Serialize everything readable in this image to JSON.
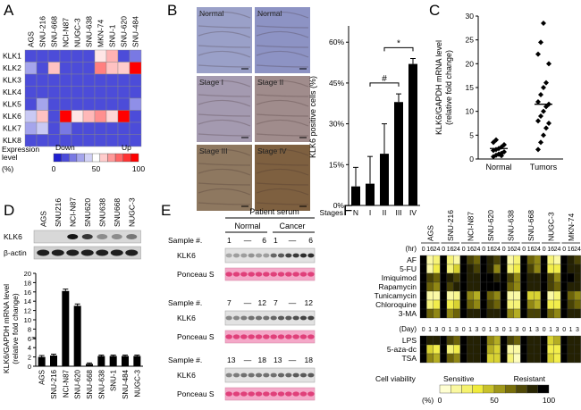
{
  "panels": {
    "A": {
      "letter": "A",
      "cell_lines": [
        "AGS",
        "SNU-216",
        "SNU-668",
        "NCI-N87",
        "NUGC-3",
        "SNU-638",
        "MKN-74",
        "SNU-1",
        "SNU-620",
        "SNU-484"
      ],
      "genes": [
        "KLK1",
        "KLK2",
        "KLK3",
        "KLK4",
        "KLK5",
        "KLK6",
        "KLK7",
        "KLK8"
      ],
      "legend": {
        "title_line1": "Expression",
        "title_line2": "level",
        "down": "Down",
        "up": "Up",
        "unit": "(%)",
        "ticks": [
          "0",
          "50",
          "100"
        ]
      },
      "colors": {
        "blue": "#1f1fd0",
        "mid": "#ffffff",
        "red": "#ff0000"
      }
    },
    "B": {
      "letter": "B",
      "image_labels": [
        "Normal",
        "Normal",
        "Stage I",
        "Stage II",
        "Stage III",
        "Stage IV"
      ],
      "chart_data": {
        "type": "bar",
        "categories": [
          "N",
          "I",
          "II",
          "III",
          "IV"
        ],
        "values": [
          7,
          8,
          19,
          38,
          52
        ],
        "errors": [
          7,
          10,
          11,
          3,
          2
        ],
        "ylabel": "KLK6 positive cells (%)",
        "xlabel": "Stages",
        "ylim": [
          0,
          65
        ],
        "yticks": [
          "0%",
          "15%",
          "30%",
          "45%",
          "60%"
        ],
        "annotations": [
          "#",
          "*"
        ]
      }
    },
    "C": {
      "letter": "C",
      "chart_data": {
        "type": "scatter",
        "categories": [
          "Normal",
          "Tumors"
        ],
        "normal_values": [
          0.5,
          0.8,
          1.0,
          1.2,
          1.5,
          1.8,
          2.0,
          2.2,
          2.5,
          3.0,
          3.5,
          4.0,
          1.0,
          0.7
        ],
        "tumor_values": [
          2.0,
          3.5,
          5.0,
          6.5,
          7.5,
          8.0,
          9.0,
          10.0,
          11.0,
          11.5,
          12.0,
          13.5,
          15.0,
          16.0,
          20.0,
          22.0,
          24.5,
          28.5
        ],
        "normal_mean": 2.2,
        "tumor_mean": 11.5,
        "ylabel_line1": "KLK6/GAPDH mRNA level",
        "ylabel_line2": "(relative fold change)",
        "ylim": [
          0,
          30
        ],
        "yticks": [
          "0",
          "5",
          "10",
          "15",
          "20",
          "25",
          "30"
        ]
      }
    },
    "D": {
      "letter": "D",
      "cell_lines": [
        "AGS",
        "SNU216",
        "NCI-N87",
        "SNU620",
        "SNU638",
        "SNU668",
        "NUGC-3"
      ],
      "blot_labels": [
        "KLK6",
        "β-actin"
      ],
      "chart_data": {
        "type": "bar",
        "categories": [
          "AGS",
          "SNU-216",
          "NCI-N87",
          "SNU-620",
          "SNU-668",
          "SNU-638",
          "SNU-1",
          "SNU-484",
          "NUGC-3"
        ],
        "values": [
          2.0,
          2.3,
          16.2,
          13.0,
          0.5,
          2.2,
          2.2,
          2.2,
          2.2
        ],
        "errors": [
          0.3,
          0.3,
          0.4,
          0.4,
          0.2,
          0.2,
          0.2,
          0.2,
          0.2
        ],
        "ylabel_line1": "KLK6/GAPDH mRNA level",
        "ylabel_line2": "(relative fold change)",
        "ylim": [
          0,
          20
        ],
        "yticks": [
          "0",
          "2",
          "4",
          "6",
          "8",
          "10",
          "12",
          "14",
          "16",
          "18",
          "20"
        ],
        "break_mark": "≈"
      }
    },
    "E": {
      "letter": "E",
      "header": "Patient serum",
      "groups": [
        "Normal",
        "Cancer"
      ],
      "samples": [
        {
          "label": "Sample #.",
          "normal_start": "1",
          "normal_end": "6",
          "cancer_start": "1",
          "cancer_end": "6"
        },
        {
          "label": "Sample #.",
          "normal_start": "7",
          "normal_end": "12",
          "cancer_start": "7",
          "cancer_end": "12"
        },
        {
          "label": "Sample #.",
          "normal_start": "13",
          "normal_end": "18",
          "cancer_start": "13",
          "cancer_end": "18"
        }
      ],
      "dash": "—",
      "row_labels": [
        "KLK6",
        "Ponceau S"
      ]
    },
    "F": {
      "letter": "F",
      "cell_lines": [
        "AGS",
        "SNU-216",
        "NCI-N87",
        "SNU-620",
        "SNU-638",
        "SNU-668",
        "NUGC-3",
        "MKN-74"
      ],
      "time_unit_hr": "(hr)",
      "time_points_hr": [
        "0",
        "16",
        "24"
      ],
      "time_unit_day": "(Day)",
      "time_points_day": [
        "0",
        "1",
        "3"
      ],
      "treatments_top": [
        "AF",
        "5-FU",
        "Imiquimod",
        "Rapamycin",
        "Tunicamycin",
        "Chloroquine",
        "3-MA"
      ],
      "treatments_bottom": [
        "LPS",
        "5-aza-dc",
        "TSA"
      ],
      "legend": {
        "title": "Cell viability",
        "sensitive": "Sensitive",
        "resistant": "Resistant",
        "unit": "(%)",
        "ticks": [
          "0",
          "50",
          "100"
        ]
      }
    }
  }
}
